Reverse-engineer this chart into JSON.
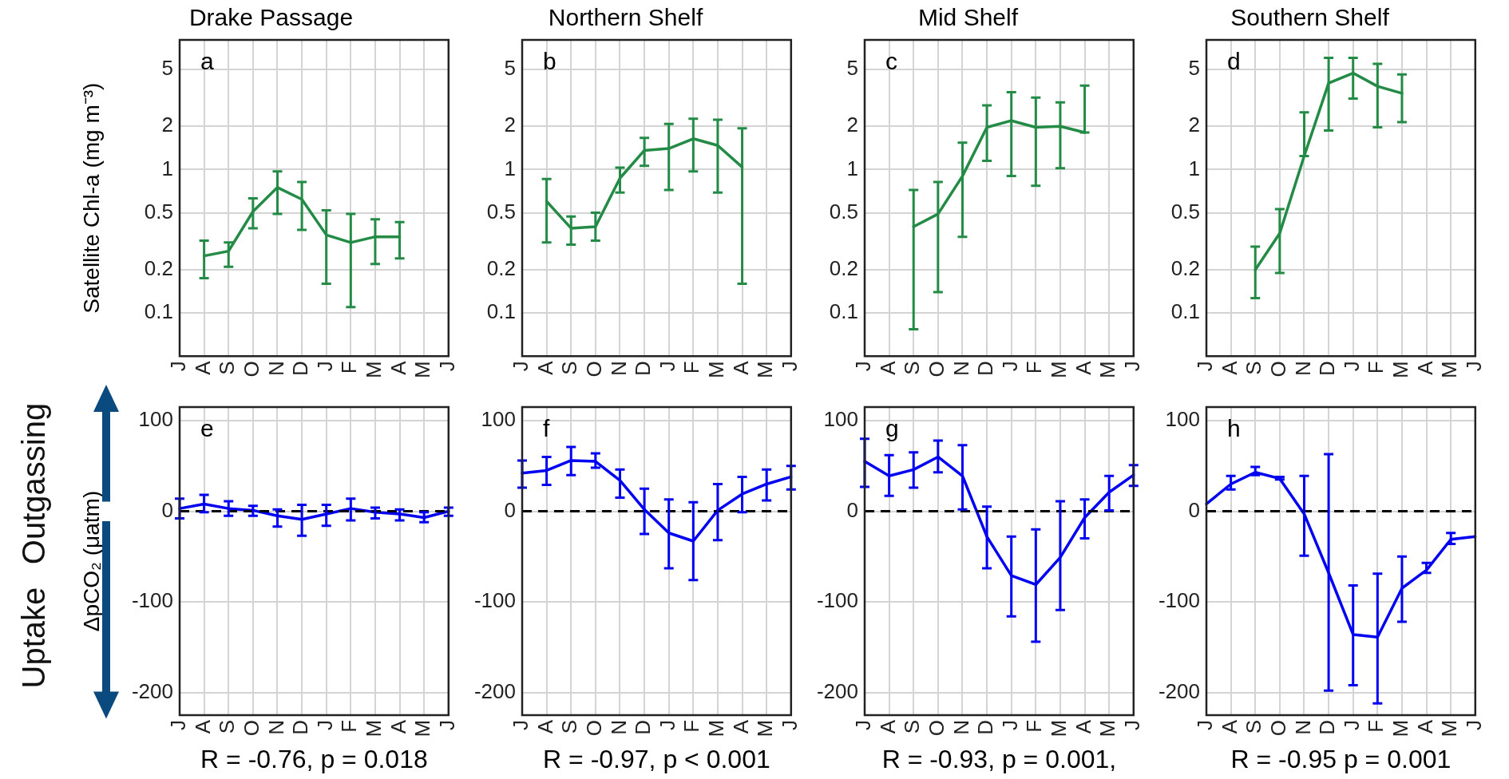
{
  "chart_data": [
    {
      "type": "line",
      "title": "Drake Passage",
      "ylabel": "Satellite Chl-a (mg m⁻³)",
      "annotations": [
        "a"
      ],
      "categories": [
        "J",
        "A",
        "S",
        "O",
        "N",
        "D",
        "J",
        "F",
        "M",
        "A",
        "M",
        "J"
      ],
      "log": true,
      "ylim": [
        0.05,
        8
      ],
      "yticks": [
        0.1,
        0.2,
        0.5,
        1,
        2,
        5
      ],
      "grid": true,
      "line_style": "solid",
      "series": [
        {
          "color": "#238b45",
          "values": [
            null,
            0.25,
            0.27,
            0.51,
            0.75,
            0.62,
            0.35,
            0.31,
            0.34,
            0.34,
            null,
            null
          ],
          "errors": [
            null,
            [
              0.175,
              0.32
            ],
            [
              0.21,
              0.31
            ],
            [
              0.39,
              0.63
            ],
            [
              0.49,
              0.97
            ],
            [
              0.38,
              0.82
            ],
            [
              0.16,
              0.52
            ],
            [
              0.11,
              0.49
            ],
            [
              0.22,
              0.45
            ],
            [
              0.24,
              0.43
            ],
            null,
            null
          ]
        }
      ]
    },
    {
      "type": "line",
      "title": "Northern Shelf",
      "annotations": [
        "b"
      ],
      "categories": [
        "J",
        "A",
        "S",
        "O",
        "N",
        "D",
        "J",
        "F",
        "M",
        "A",
        "M",
        "J"
      ],
      "log": true,
      "ylim": [
        0.05,
        8
      ],
      "yticks": [
        0.1,
        0.2,
        0.5,
        1,
        2,
        5
      ],
      "grid": true,
      "line_style": "solid",
      "series": [
        {
          "color": "#238b45",
          "values": [
            null,
            0.6,
            0.39,
            0.4,
            0.87,
            1.36,
            1.4,
            1.64,
            1.47,
            1.04,
            null,
            null
          ],
          "errors": [
            null,
            [
              0.31,
              0.86
            ],
            [
              0.3,
              0.47
            ],
            [
              0.32,
              0.5
            ],
            [
              0.69,
              1.03
            ],
            [
              1.06,
              1.66
            ],
            [
              0.72,
              2.08
            ],
            [
              0.97,
              2.26
            ],
            [
              0.69,
              2.22
            ],
            [
              0.16,
              1.94
            ],
            null,
            null
          ]
        }
      ]
    },
    {
      "type": "line",
      "title": "Mid Shelf",
      "annotations": [
        "c"
      ],
      "categories": [
        "J",
        "A",
        "S",
        "O",
        "N",
        "D",
        "J",
        "F",
        "M",
        "A",
        "M",
        "J"
      ],
      "log": true,
      "ylim": [
        0.05,
        8
      ],
      "yticks": [
        0.1,
        0.2,
        0.5,
        1,
        2,
        5
      ],
      "grid": true,
      "line_style": "solid",
      "series": [
        {
          "color": "#238b45",
          "values": [
            null,
            null,
            0.4,
            0.49,
            0.9,
            1.97,
            2.19,
            1.97,
            2.0,
            1.81,
            null,
            null
          ],
          "errors": [
            null,
            null,
            [
              0.077,
              0.72
            ],
            [
              0.14,
              0.82
            ],
            [
              0.34,
              1.54
            ],
            [
              1.15,
              2.8
            ],
            [
              0.9,
              3.46
            ],
            [
              0.77,
              3.17
            ],
            [
              1.02,
              2.94
            ],
            [
              1.81,
              3.84
            ],
            null,
            null
          ]
        }
      ]
    },
    {
      "type": "line",
      "title": "Southern Shelf",
      "annotations": [
        "d"
      ],
      "categories": [
        "J",
        "A",
        "S",
        "O",
        "N",
        "D",
        "J",
        "F",
        "M",
        "A",
        "M",
        "J"
      ],
      "log": true,
      "ylim": [
        0.05,
        8
      ],
      "yticks": [
        0.1,
        0.2,
        0.5,
        1,
        2,
        5
      ],
      "grid": true,
      "line_style": "solid",
      "series": [
        {
          "color": "#238b45",
          "values": [
            null,
            null,
            0.2,
            0.36,
            1.24,
            4.0,
            4.7,
            3.8,
            3.4,
            null,
            null,
            null
          ],
          "errors": [
            null,
            null,
            [
              0.127,
              0.29
            ],
            [
              0.19,
              0.53
            ],
            [
              1.24,
              2.5
            ],
            [
              1.87,
              6.0
            ],
            [
              3.12,
              6.0
            ],
            [
              1.97,
              5.45
            ],
            [
              2.14,
              4.6
            ],
            null,
            null,
            null
          ]
        }
      ]
    },
    {
      "type": "line",
      "xlabel": "R = -0.76, p = 0.018",
      "ylabel": "ΔpCO₂ (μatm)",
      "annotations": [
        "e",
        "Outgassing",
        "Uptake"
      ],
      "categories": [
        "J",
        "A",
        "S",
        "O",
        "N",
        "D",
        "J",
        "F",
        "M",
        "A",
        "M",
        "J"
      ],
      "ylim": [
        -225,
        115
      ],
      "yticks": [
        -200,
        -100,
        0,
        100
      ],
      "grid": true,
      "line_style": "solid",
      "ref_lines": [
        {
          "axis": "y",
          "value": 0,
          "color": "#000000",
          "line_style": "dashed"
        }
      ],
      "series": [
        {
          "color": "#0000f0",
          "values": [
            3,
            8,
            3,
            1,
            -5,
            -9,
            -3,
            3,
            -1,
            -3,
            -7,
            0
          ],
          "errors": [
            [
              -8,
              14
            ],
            [
              -1,
              18
            ],
            [
              -5,
              11
            ],
            [
              -5,
              6
            ],
            [
              -17,
              2
            ],
            [
              -27,
              7
            ],
            [
              -16,
              7
            ],
            [
              -10,
              14
            ],
            [
              -8,
              4
            ],
            [
              -10,
              2
            ],
            [
              -12,
              -1
            ],
            [
              -5,
              4
            ]
          ]
        }
      ]
    },
    {
      "type": "line",
      "xlabel": "R = -0.97, p < 0.001",
      "annotations": [
        "f"
      ],
      "categories": [
        "J",
        "A",
        "S",
        "O",
        "N",
        "D",
        "J",
        "F",
        "M",
        "A",
        "M",
        "J"
      ],
      "ylim": [
        -225,
        115
      ],
      "yticks": [
        -200,
        -100,
        0,
        100
      ],
      "grid": true,
      "line_style": "solid",
      "ref_lines": [
        {
          "axis": "y",
          "value": 0,
          "color": "#000000",
          "line_style": "dashed"
        }
      ],
      "series": [
        {
          "color": "#0000f0",
          "values": [
            42,
            45,
            56,
            55,
            34,
            2,
            -24,
            -33,
            1,
            19,
            30,
            38
          ],
          "errors": [
            [
              26,
              56
            ],
            [
              29,
              60
            ],
            [
              40,
              71
            ],
            [
              48,
              64
            ],
            [
              15,
              46
            ],
            [
              -25,
              25
            ],
            [
              -63,
              13
            ],
            [
              -76,
              10
            ],
            [
              -32,
              30
            ],
            [
              -1,
              38
            ],
            [
              12,
              46
            ],
            [
              24,
              50
            ]
          ]
        }
      ]
    },
    {
      "type": "line",
      "xlabel": "R = -0.93, p = 0.001,",
      "annotations": [
        "g"
      ],
      "categories": [
        "J",
        "A",
        "S",
        "O",
        "N",
        "D",
        "J",
        "F",
        "M",
        "A",
        "M",
        "J"
      ],
      "ylim": [
        -225,
        115
      ],
      "yticks": [
        -200,
        -100,
        0,
        100
      ],
      "grid": true,
      "line_style": "solid",
      "ref_lines": [
        {
          "axis": "y",
          "value": 0,
          "color": "#000000",
          "line_style": "dashed"
        }
      ],
      "series": [
        {
          "color": "#0000f0",
          "values": [
            55,
            39,
            46,
            60,
            39,
            -28,
            -71,
            -81,
            -51,
            -7,
            21,
            40
          ],
          "errors": [
            [
              27,
              80
            ],
            [
              17,
              62
            ],
            [
              26,
              65
            ],
            [
              43,
              78
            ],
            [
              2,
              73
            ],
            [
              -63,
              5
            ],
            [
              -116,
              -28
            ],
            [
              -144,
              -20
            ],
            [
              -109,
              11
            ],
            [
              -30,
              13
            ],
            [
              1,
              39
            ],
            [
              28,
              51
            ]
          ]
        }
      ]
    },
    {
      "type": "line",
      "xlabel": "R = -0.95 p = 0.001",
      "annotations": [
        "h"
      ],
      "categories": [
        "J",
        "A",
        "S",
        "O",
        "N",
        "D",
        "J",
        "F",
        "M",
        "A",
        "M",
        "J"
      ],
      "ylim": [
        -225,
        115
      ],
      "yticks": [
        -200,
        -100,
        0,
        100
      ],
      "grid": true,
      "line_style": "solid",
      "ref_lines": [
        {
          "axis": "y",
          "value": 0,
          "color": "#000000",
          "line_style": "dashed"
        }
      ],
      "series": [
        {
          "color": "#0000f0",
          "values": [
            8,
            30,
            43,
            36,
            -3,
            -68,
            -136,
            -139,
            -85,
            -65,
            -31,
            -28
          ],
          "errors": [
            null,
            [
              24,
              39
            ],
            [
              40,
              49
            ],
            [
              35,
              38
            ],
            [
              -49,
              39
            ],
            [
              -198,
              63
            ],
            [
              -192,
              -82
            ],
            [
              -212,
              -69
            ],
            [
              -122,
              -50
            ],
            [
              -68,
              -57
            ],
            [
              -36,
              -24
            ],
            null
          ]
        }
      ]
    }
  ]
}
